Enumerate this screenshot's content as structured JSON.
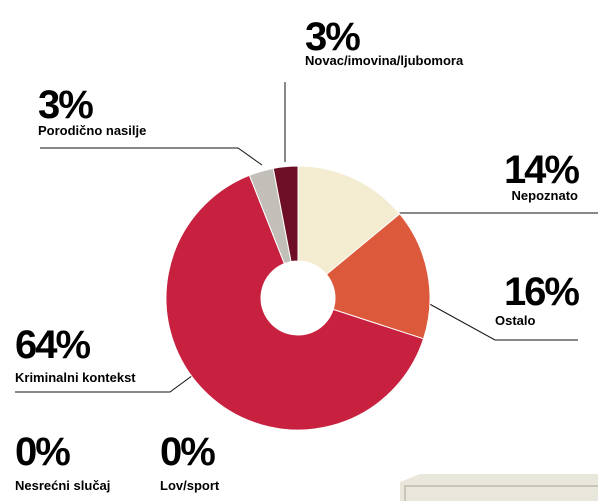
{
  "chart_data": {
    "type": "donut",
    "categories": [
      "Nepoznato",
      "Ostalo",
      "Kriminalni kontekst",
      "Porodično nasilje",
      "Novac/imovina/ljubomora",
      "Nesrećni slučaj",
      "Lov/sport"
    ],
    "values": [
      14,
      16,
      64,
      3,
      3,
      0,
      0
    ],
    "value_labels": [
      "14%",
      "16%",
      "64%",
      "3%",
      "3%",
      "0%",
      "0%"
    ],
    "colors": [
      "#f3ecd0",
      "#dc5a3b",
      "#c8203f",
      "#c2beb8",
      "#6e0e26",
      "#999999",
      "#999999"
    ]
  }
}
